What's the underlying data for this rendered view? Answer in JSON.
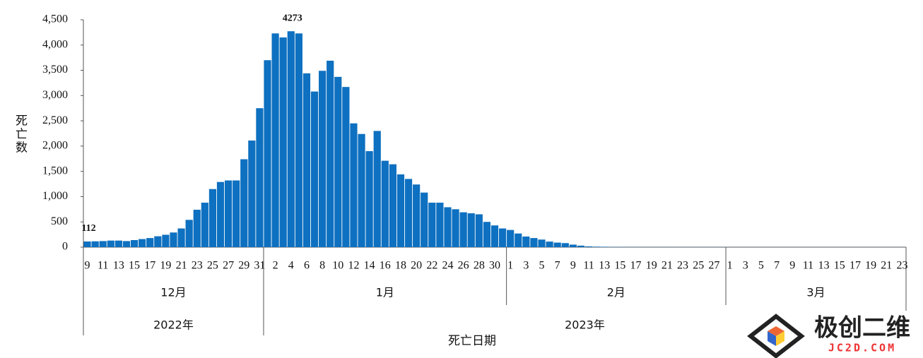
{
  "chart_data": {
    "type": "bar",
    "y_label": "死亡数",
    "x_label": "死亡日期",
    "color": "#0e70c0",
    "ylim": [
      0,
      4500
    ],
    "yticks": [
      0,
      500,
      {
        "value": 1000,
        "label": "1,000"
      },
      {
        "value": 1500,
        "label": "1,500"
      },
      {
        "value": 2000,
        "label": "2,000"
      },
      {
        "value": 2500,
        "label": "2,500"
      },
      {
        "value": 3000,
        "label": "3,000"
      },
      {
        "value": 3500,
        "label": "3,500"
      },
      {
        "value": 4000,
        "label": "4,000"
      },
      {
        "value": 4500,
        "label": "4,500"
      }
    ],
    "years": [
      {
        "label": "2022年",
        "months": [
          {
            "label": "12月",
            "categories": [
              "9",
              null,
              "11",
              null,
              "13",
              null,
              "15",
              null,
              "17",
              null,
              "19",
              null,
              "21",
              null,
              "23",
              null,
              "25",
              null,
              "27",
              null,
              "29",
              null,
              "31"
            ],
            "values": [
              112,
              115,
              120,
              130,
              130,
              120,
              140,
              160,
              180,
              215,
              245,
              290,
              370,
              540,
              740,
              880,
              1150,
              1290,
              1320,
              1320,
              1740,
              2110,
              2750
            ],
            "value_labels": [
              "112",
              null,
              null,
              null,
              null,
              null,
              null,
              null,
              null,
              null,
              null,
              null,
              null,
              null,
              null,
              null,
              null,
              null,
              null,
              null,
              null,
              null,
              null
            ]
          }
        ]
      },
      {
        "label": "2023年",
        "months": [
          {
            "label": "1月",
            "categories": [
              null,
              "2",
              null,
              "4",
              null,
              "6",
              null,
              "8",
              null,
              "10",
              null,
              "12",
              null,
              "14",
              null,
              "16",
              null,
              "18",
              null,
              "20",
              null,
              "22",
              null,
              "24",
              null,
              "26",
              null,
              "28",
              null,
              "30",
              null
            ],
            "values": [
              3700,
              4230,
              4150,
              4273,
              4230,
              3440,
              3080,
              3490,
              3690,
              3370,
              3170,
              2450,
              2240,
              1900,
              2300,
              1710,
              1640,
              1440,
              1350,
              1240,
              1080,
              880,
              880,
              790,
              750,
              690,
              670,
              650,
              500,
              430,
              370
            ],
            "value_labels": [
              null,
              null,
              null,
              "4273",
              null,
              null,
              null,
              null,
              null,
              null,
              null,
              null,
              null,
              null,
              null,
              null,
              null,
              null,
              null,
              null,
              null,
              null,
              null,
              null,
              null,
              null,
              null,
              null,
              null,
              null,
              null
            ]
          },
          {
            "label": "2月",
            "categories": [
              "1",
              null,
              "3",
              null,
              "5",
              null,
              "7",
              null,
              "9",
              null,
              "11",
              null,
              "13",
              null,
              "15",
              null,
              "17",
              null,
              "19",
              null,
              "21",
              null,
              "23",
              null,
              "25",
              null,
              "27",
              null
            ],
            "values": [
              340,
              270,
              210,
              180,
              150,
              110,
              90,
              80,
              50,
              30,
              15,
              10,
              8,
              6,
              5,
              4,
              4,
              3,
              3,
              3,
              3,
              2,
              2,
              2,
              2,
              2,
              2,
              2
            ]
          },
          {
            "label": "3月",
            "categories": [
              "1",
              null,
              "3",
              null,
              "5",
              null,
              "7",
              null,
              "9",
              null,
              "11",
              null,
              "13",
              null,
              "15",
              null,
              "17",
              null,
              "19",
              null,
              "21",
              null,
              "23"
            ],
            "values": [
              1,
              1,
              1,
              1,
              1,
              1,
              1,
              1,
              1,
              1,
              1,
              1,
              1,
              1,
              1,
              1,
              1,
              1,
              1,
              1,
              1,
              1,
              1
            ]
          }
        ]
      }
    ]
  },
  "watermark": {
    "name": "极创二维",
    "site": "JC2D.COM"
  }
}
